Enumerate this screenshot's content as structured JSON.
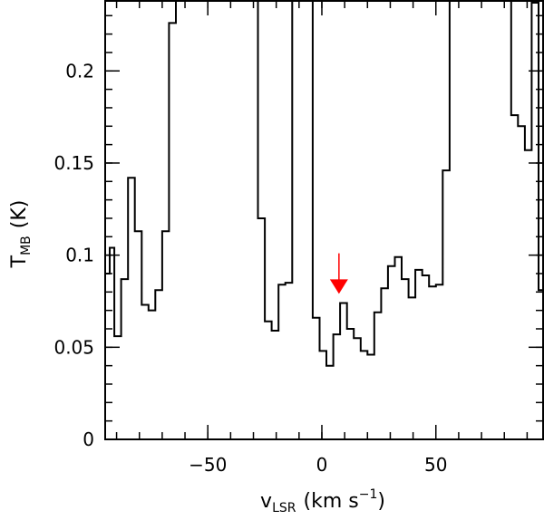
{
  "chart_data": {
    "type": "line",
    "style": "step",
    "xlabel": {
      "main": "v",
      "sub": "LSR",
      "units_pre": "(km s",
      "sup": "−1",
      "units_post": ")"
    },
    "ylabel": {
      "main": "T",
      "sub": "MB",
      "units": "(K)"
    },
    "xlim": [
      -95,
      97
    ],
    "ylim": [
      0,
      0.238
    ],
    "x_major_ticks": [
      -50,
      0,
      50
    ],
    "x_tick_labels": [
      "−50",
      "0",
      "50"
    ],
    "x_minor_step": 10,
    "y_major_ticks": [
      0,
      0.05,
      0.1,
      0.15,
      0.2
    ],
    "y_tick_labels": [
      "0",
      "0.05",
      "0.1",
      "0.15",
      "0.2"
    ],
    "y_minor_step": 0.01,
    "grid": false,
    "line_color": "#000000",
    "marker": {
      "x": 7.5,
      "y_top": 0.101,
      "y_tip": 0.079,
      "color": "#ff0000"
    },
    "series": [
      {
        "x": [
          -96,
          -93,
          -91,
          -88,
          -85,
          -82,
          -79,
          -76,
          -73,
          -70,
          -67,
          -64,
          -61,
          -58,
          -55,
          -52,
          -49,
          -46,
          -43,
          -40,
          -37,
          -34,
          -31,
          -28,
          -25,
          -22,
          -19,
          -16,
          -13,
          -10,
          -7,
          -4,
          -1,
          2,
          5,
          8,
          11,
          14,
          17,
          20,
          23,
          26,
          29,
          32,
          35,
          38,
          41,
          44,
          47,
          50,
          53,
          56,
          59,
          62,
          65,
          68,
          71,
          74,
          77,
          80,
          83,
          86,
          89,
          92,
          95,
          98
        ],
        "y": [
          0.09,
          0.104,
          0.056,
          0.087,
          0.142,
          0.113,
          0.073,
          0.07,
          0.081,
          0.113,
          0.226,
          0.25,
          0.25,
          0.25,
          0.25,
          0.25,
          0.25,
          0.25,
          0.25,
          0.25,
          0.25,
          0.25,
          0.25,
          0.12,
          0.064,
          0.059,
          0.084,
          0.085,
          0.25,
          0.25,
          0.25,
          0.066,
          0.048,
          0.04,
          0.057,
          0.074,
          0.06,
          0.055,
          0.048,
          0.046,
          0.069,
          0.082,
          0.094,
          0.099,
          0.087,
          0.077,
          0.092,
          0.089,
          0.083,
          0.084,
          0.146,
          0.25,
          0.25,
          0.25,
          0.25,
          0.25,
          0.25,
          0.25,
          0.25,
          0.25,
          0.176,
          0.17,
          0.157,
          0.237,
          0.081,
          0.067
        ]
      }
    ]
  }
}
